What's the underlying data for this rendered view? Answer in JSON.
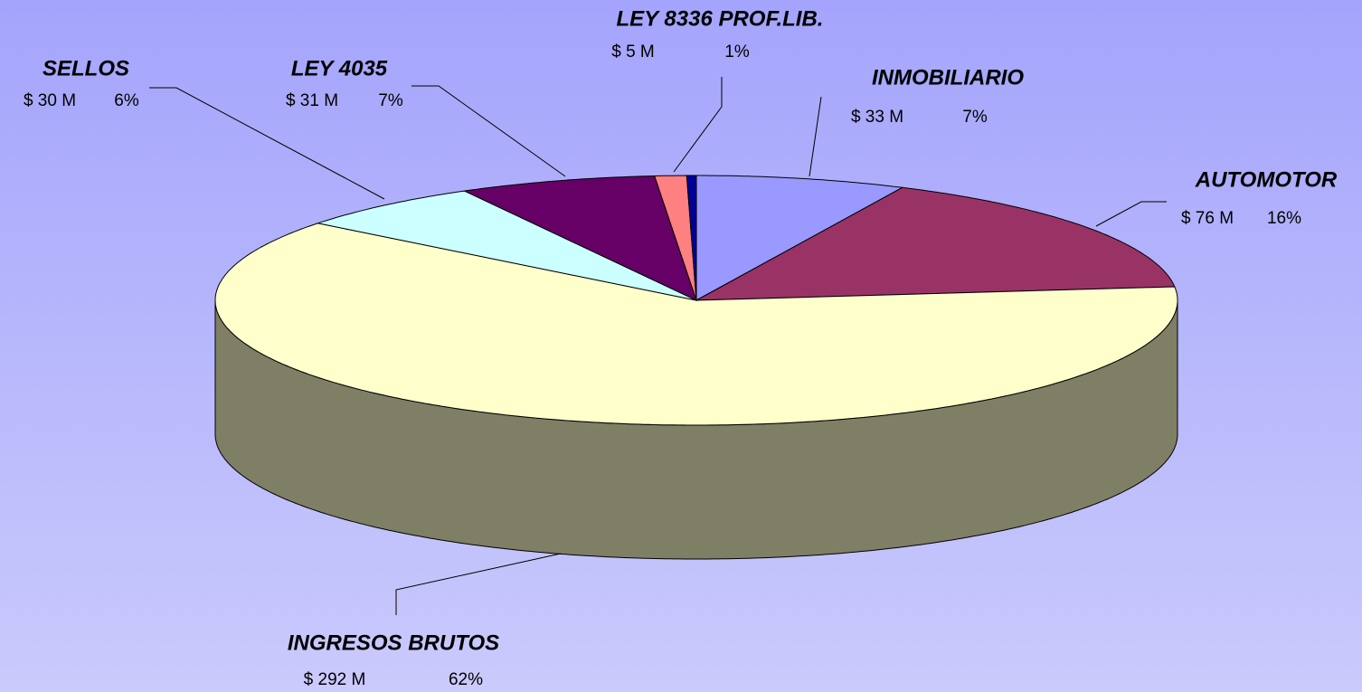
{
  "chart_data": {
    "type": "pie3d",
    "categories": [
      "INMOBILIARIO",
      "AUTOMOTOR",
      "INGRESOS BRUTOS",
      "SELLOS",
      "LEY 4035",
      "LEY 8336 PROF.LIB.",
      null
    ],
    "values": [
      33,
      76,
      292,
      30,
      31,
      5,
      1.5
    ],
    "value_labels": [
      "$ 33 M",
      "$ 76 M",
      "$ 292 M",
      "$ 30 M",
      "$ 31 M",
      "$ 5 M",
      null
    ],
    "percents": [
      7,
      16,
      62,
      6,
      7,
      1,
      null
    ],
    "percent_labels": [
      "7%",
      "16%",
      "62%",
      "6%",
      "7%",
      "1%",
      null
    ],
    "colors": [
      "#9999ff",
      "#993366",
      "#ffffcc",
      "#ccffff",
      "#660066",
      "#ff8080",
      "#000099"
    ]
  }
}
